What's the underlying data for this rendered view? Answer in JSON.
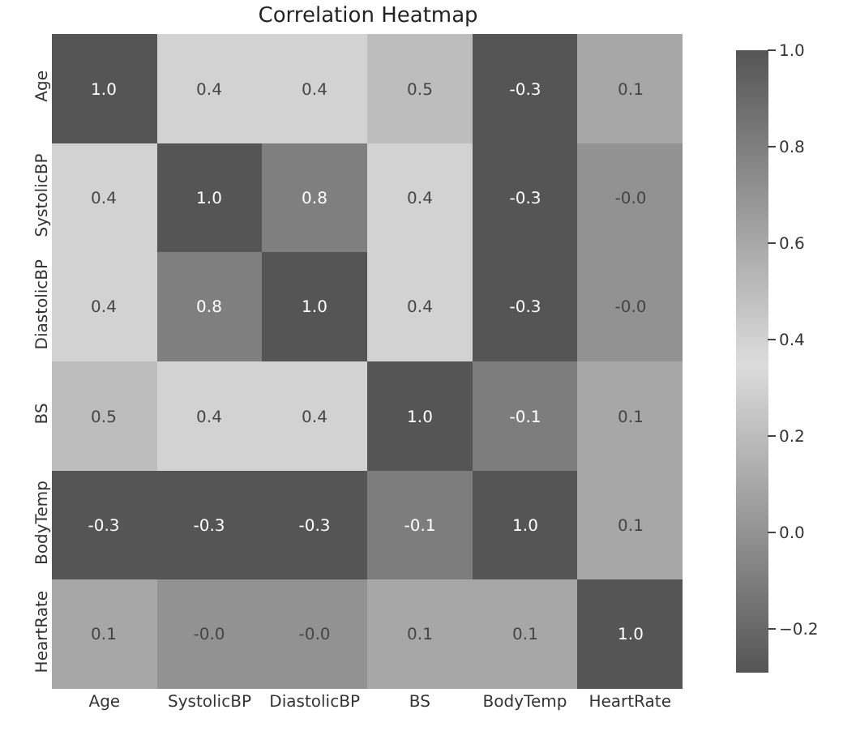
{
  "chart_data": {
    "type": "heatmap",
    "title": "Correlation Heatmap",
    "categories": [
      "Age",
      "SystolicBP",
      "DiastolicBP",
      "BS",
      "BodyTemp",
      "HeartRate"
    ],
    "y_categories": [
      "Age",
      "SystolicBP",
      "DiastolicBP",
      "BS",
      "BodyTemp",
      "HeartRate"
    ],
    "cells": [
      [
        1.0,
        0.4,
        0.4,
        0.5,
        -0.3,
        0.1
      ],
      [
        0.4,
        1.0,
        0.8,
        0.4,
        -0.3,
        0.0
      ],
      [
        0.4,
        0.8,
        1.0,
        0.4,
        -0.3,
        0.0
      ],
      [
        0.5,
        0.4,
        0.4,
        1.0,
        -0.1,
        0.1
      ],
      [
        -0.3,
        -0.3,
        -0.3,
        -0.1,
        1.0,
        0.1
      ],
      [
        0.1,
        0.0,
        0.0,
        0.1,
        0.1,
        1.0
      ]
    ],
    "cell_labels": [
      [
        "1.0",
        "0.4",
        "0.4",
        "0.5",
        "-0.3",
        "0.1"
      ],
      [
        "0.4",
        "1.0",
        "0.8",
        "0.4",
        "-0.3",
        "-0.0"
      ],
      [
        "0.4",
        "0.8",
        "1.0",
        "0.4",
        "-0.3",
        "-0.0"
      ],
      [
        "0.5",
        "0.4",
        "0.4",
        "1.0",
        "-0.1",
        "0.1"
      ],
      [
        "-0.3",
        "-0.3",
        "-0.3",
        "-0.1",
        "1.0",
        "0.1"
      ],
      [
        "0.1",
        "-0.0",
        "-0.0",
        "0.1",
        "0.1",
        "1.0"
      ]
    ],
    "clim": [
      -0.29,
      1.0
    ],
    "cticks": [
      {
        "value": -0.2,
        "label": "−0.2"
      },
      {
        "value": 0,
        "label": "0.0"
      },
      {
        "value": 0.2,
        "label": "0.2"
      },
      {
        "value": 0.4,
        "label": "0.4"
      },
      {
        "value": 0.6,
        "label": "0.6"
      },
      {
        "value": 0.8,
        "label": "0.8"
      },
      {
        "value": 1,
        "label": "1.0"
      }
    ]
  }
}
